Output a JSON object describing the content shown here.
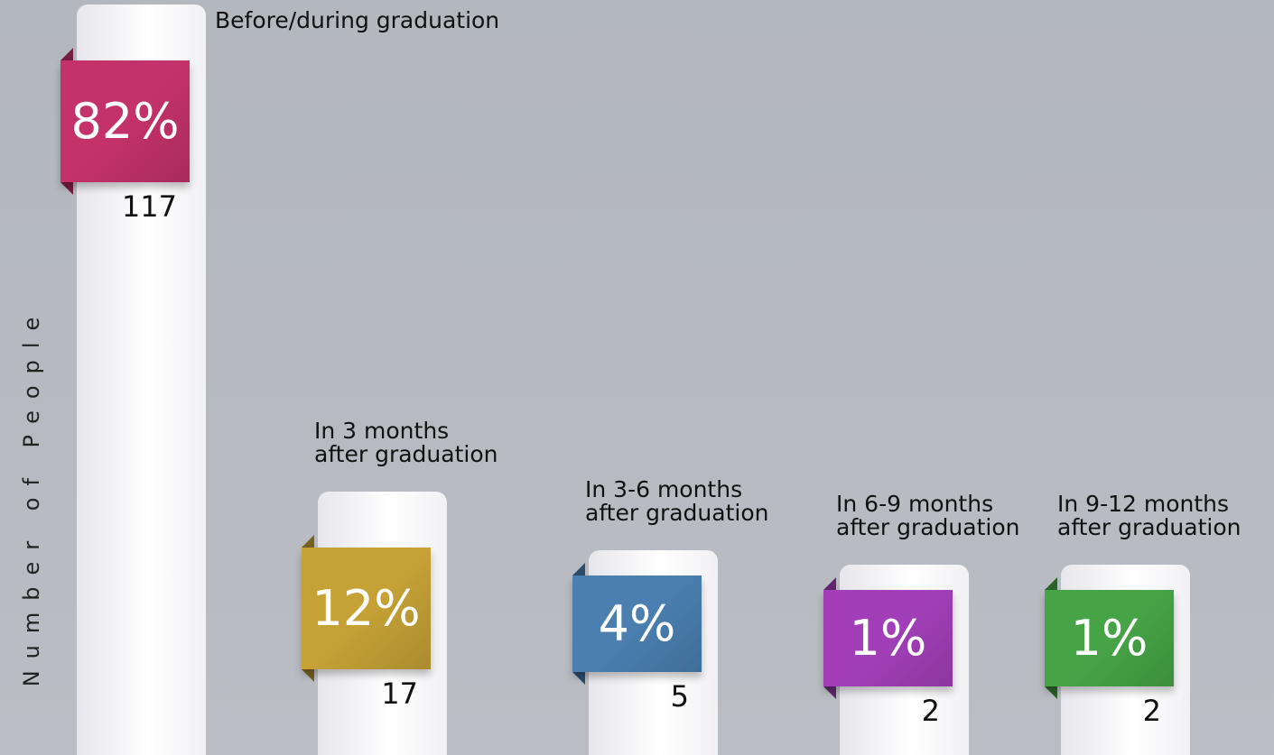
{
  "chart_data": {
    "type": "bar",
    "y_label": "Number of People",
    "categories": [
      "Before/during graduation",
      "In 3 months\nafter graduation",
      "In 3-6 months\nafter graduation",
      "In 6-9 months\nafter graduation",
      "In 9-12 months\nafter graduation"
    ],
    "values": [
      117,
      17,
      5,
      2,
      2
    ],
    "shares": [
      82,
      12,
      4,
      1,
      1
    ],
    "share_labels": [
      "82%",
      "12%",
      "4%",
      "1%",
      "1%"
    ],
    "colors": [
      "#c4326a",
      "#c6a236",
      "#4a7fb0",
      "#a23fb8",
      "#47a446"
    ]
  }
}
